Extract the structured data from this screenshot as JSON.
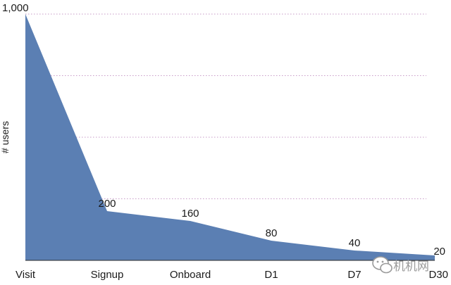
{
  "chart_data": {
    "type": "area",
    "categories": [
      "Visit",
      "Signup",
      "Onboard",
      "D1",
      "D7",
      "D30"
    ],
    "values": [
      1000,
      200,
      160,
      80,
      40,
      20
    ],
    "data_labels": [
      "1,000",
      "200",
      "160",
      "80",
      "40",
      "20"
    ],
    "ylabel": "# users",
    "ylim": [
      0,
      1000
    ],
    "grid": true,
    "grid_style": "dotted",
    "colors": {
      "fill": "#5b7fb3",
      "grid": "#c79ac7",
      "axis": "#2a2a2a"
    }
  },
  "watermark": {
    "text": "机机网",
    "icon": "wechat-icon"
  }
}
